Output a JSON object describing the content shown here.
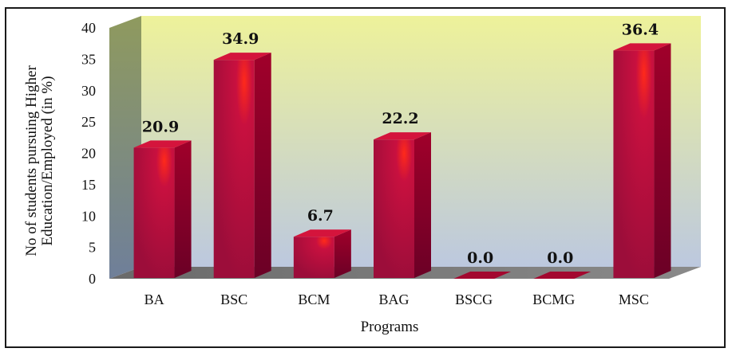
{
  "chart_data": {
    "type": "bar",
    "style": "3d-column",
    "categories": [
      "BA",
      "BSC",
      "BCM",
      "BAG",
      "BSCG",
      "BCMG",
      "MSC"
    ],
    "values": [
      20.9,
      34.9,
      6.7,
      22.2,
      0.0,
      0.0,
      36.4
    ],
    "value_labels": [
      "20.9",
      "34.9",
      "6.7",
      "22.2",
      "0.0",
      "0.0",
      "36.4"
    ],
    "xlabel": "Programs",
    "ylabel_lines": [
      "No of students pursuing Higher",
      "Education/Employed (in %)"
    ],
    "ylim": [
      0,
      40
    ],
    "yticks": [
      0,
      5,
      10,
      15,
      20,
      25,
      30,
      35,
      40
    ],
    "grid": false,
    "legend": "none",
    "colors": {
      "bar_front_dark": "#9c0d3a",
      "bar_front_mid": "#c8103f",
      "bar_highlight": "#ff2a1a",
      "bar_side": "#6b0026",
      "bar_top": "#d4143c",
      "wall_top": "#eef29a",
      "wall_bottom": "#bcc8df",
      "side_wall": "#8c9b78",
      "floor": "#777777"
    }
  }
}
